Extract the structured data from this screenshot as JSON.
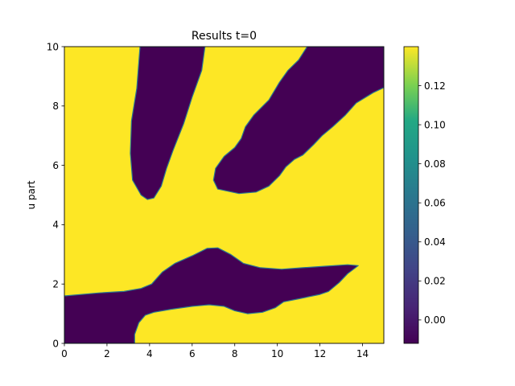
{
  "chart_data": {
    "type": "heatmap",
    "title": "Results t=0",
    "xlabel": "",
    "ylabel": "u part",
    "xlim": [
      0,
      15
    ],
    "ylim": [
      0,
      10
    ],
    "x_ticks": [
      0,
      2,
      4,
      6,
      8,
      10,
      12,
      14
    ],
    "y_ticks": [
      0,
      2,
      4,
      6,
      8,
      10
    ],
    "colorbar": {
      "vmin": -0.012,
      "vmax": 0.14,
      "ticks": [
        "0.12",
        "0.10",
        "0.08",
        "0.06",
        "0.04",
        "0.02",
        "0.00"
      ],
      "tick_values": [
        0.12,
        0.1,
        0.08,
        0.06,
        0.04,
        0.02,
        0.0
      ],
      "colormap": "viridis"
    },
    "field": {
      "background_value": 0.14,
      "background_color": "#fde725",
      "region_value": -0.01,
      "region_color": "#440154",
      "regions": [
        {
          "name": "top-left-lobe",
          "outline": [
            [
              3.55,
              10
            ],
            [
              3.4,
              8.6
            ],
            [
              3.15,
              7.5
            ],
            [
              3.1,
              6.4
            ],
            [
              3.2,
              5.5
            ],
            [
              3.6,
              5.0
            ],
            [
              3.9,
              4.85
            ],
            [
              4.2,
              4.9
            ],
            [
              4.55,
              5.3
            ],
            [
              4.8,
              5.9
            ],
            [
              5.1,
              6.5
            ],
            [
              5.6,
              7.4
            ],
            [
              6.0,
              8.3
            ],
            [
              6.45,
              9.2
            ],
            [
              6.6,
              10
            ]
          ]
        },
        {
          "name": "top-right-band",
          "outline": [
            [
              11.4,
              10
            ],
            [
              15,
              10
            ],
            [
              15,
              8.62
            ],
            [
              14.5,
              8.45
            ],
            [
              13.7,
              8.1
            ],
            [
              13.2,
              7.7
            ],
            [
              12.6,
              7.3
            ],
            [
              12.1,
              7.0
            ],
            [
              11.7,
              6.7
            ],
            [
              11.2,
              6.35
            ],
            [
              10.8,
              6.2
            ],
            [
              10.4,
              5.95
            ],
            [
              10.1,
              5.65
            ],
            [
              9.6,
              5.3
            ],
            [
              9.0,
              5.1
            ],
            [
              8.2,
              5.05
            ],
            [
              7.2,
              5.2
            ],
            [
              7.0,
              5.5
            ],
            [
              7.1,
              5.9
            ],
            [
              7.5,
              6.3
            ],
            [
              8.0,
              6.6
            ],
            [
              8.3,
              6.9
            ],
            [
              8.5,
              7.3
            ],
            [
              8.9,
              7.7
            ],
            [
              9.6,
              8.2
            ],
            [
              10.1,
              8.8
            ],
            [
              10.5,
              9.2
            ],
            [
              11.0,
              9.55
            ],
            [
              11.4,
              10
            ]
          ]
        },
        {
          "name": "bottom-band",
          "outline": [
            [
              0,
              1.6
            ],
            [
              1.6,
              1.7
            ],
            [
              2.8,
              1.75
            ],
            [
              3.6,
              1.85
            ],
            [
              4.1,
              2.0
            ],
            [
              4.6,
              2.4
            ],
            [
              5.2,
              2.7
            ],
            [
              6.0,
              2.95
            ],
            [
              6.7,
              3.2
            ],
            [
              7.2,
              3.22
            ],
            [
              7.8,
              3.0
            ],
            [
              8.4,
              2.7
            ],
            [
              9.2,
              2.55
            ],
            [
              10.2,
              2.5
            ],
            [
              11.2,
              2.55
            ],
            [
              12.2,
              2.6
            ],
            [
              13.3,
              2.65
            ],
            [
              13.8,
              2.62
            ],
            [
              13.3,
              2.35
            ],
            [
              12.9,
              2.05
            ],
            [
              12.4,
              1.75
            ],
            [
              12.0,
              1.65
            ],
            [
              11.0,
              1.5
            ],
            [
              10.3,
              1.4
            ],
            [
              9.9,
              1.2
            ],
            [
              9.3,
              1.05
            ],
            [
              8.6,
              1.0
            ],
            [
              8.0,
              1.1
            ],
            [
              7.5,
              1.25
            ],
            [
              6.8,
              1.3
            ],
            [
              6.0,
              1.25
            ],
            [
              5.0,
              1.15
            ],
            [
              4.2,
              1.05
            ],
            [
              3.8,
              0.95
            ],
            [
              3.5,
              0.7
            ],
            [
              3.3,
              0.3
            ],
            [
              3.3,
              0
            ],
            [
              0,
              0
            ]
          ]
        }
      ]
    }
  }
}
